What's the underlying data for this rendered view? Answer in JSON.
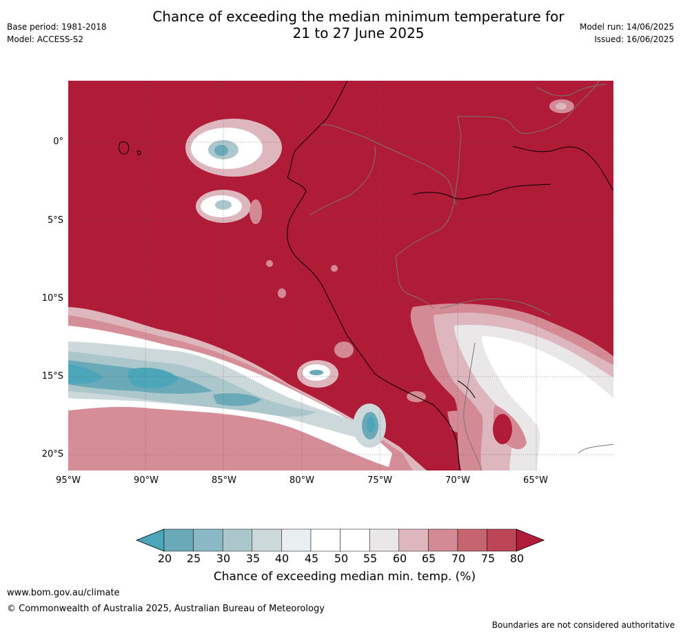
{
  "title_line1": "Chance of exceeding the median minimum temperature for",
  "title_line2": "21 to 27 June 2025",
  "meta_left": {
    "base_period": "Base period: 1981-2018",
    "model": "Model: ACCESS-S2"
  },
  "meta_right": {
    "model_run": "Model run: 14/06/2025",
    "issued": "Issued: 16/06/2025"
  },
  "map": {
    "y_axis_labels": [
      "0°",
      "5°S",
      "10°S",
      "15°S",
      "20°S"
    ],
    "x_axis_labels": [
      "95°W",
      "90°W",
      "85°W",
      "80°W",
      "75°W",
      "70°W",
      "65°W"
    ],
    "background_color": "#b01c38"
  },
  "colorbar": {
    "ticks": [
      "20",
      "25",
      "30",
      "35",
      "40",
      "45",
      "50",
      "55",
      "60",
      "65",
      "70",
      "75",
      "80"
    ],
    "colors": [
      "#4aa6b8",
      "#6aa9b8",
      "#8ab8c4",
      "#abc7cc",
      "#ccd8da",
      "#e9eef0",
      "#ffffff",
      "#ffffff",
      "#e9e7e7",
      "#ddb7bd",
      "#d48a94",
      "#c66470",
      "#bc4656",
      "#b01c38"
    ],
    "label": "Chance of exceeding median min. temp. (%)"
  },
  "footer": {
    "website": "www.bom.gov.au/climate",
    "copyright": "© Commonwealth of Australia 2025, Australian Bureau of Meteorology",
    "disclaimer": "Boundaries are not considered authoritative"
  }
}
